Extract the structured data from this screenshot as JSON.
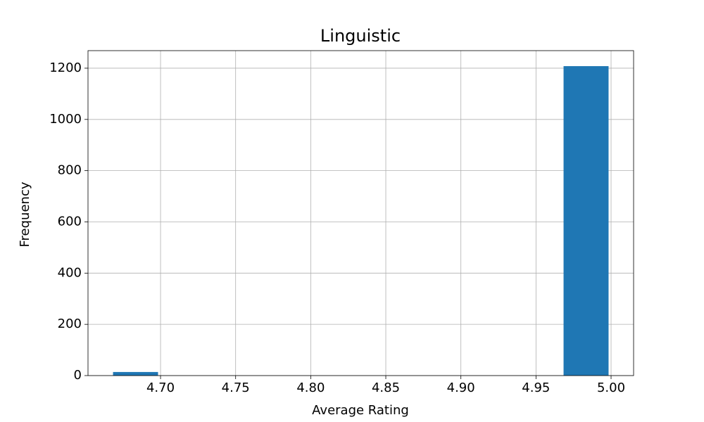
{
  "chart_data": {
    "type": "histogram",
    "title": "Linguistic",
    "x_label": "Average Rating",
    "y_label": "Frequency",
    "bins": [
      4.6667,
      4.7,
      4.7333,
      4.7667,
      4.8,
      4.8333,
      4.8667,
      4.9,
      4.9333,
      4.9667,
      5.0
    ],
    "values": [
      14,
      0,
      0,
      0,
      0,
      0,
      0,
      0,
      0,
      1208
    ],
    "color": "#1f77b4",
    "xlim": [
      4.6517,
      5.015
    ],
    "xticks": [
      {
        "value": 4.7,
        "label": "4.70"
      },
      {
        "value": 4.75,
        "label": "4.75"
      },
      {
        "value": 4.8,
        "label": "4.80"
      },
      {
        "value": 4.85,
        "label": "4.85"
      },
      {
        "value": 4.9,
        "label": "4.90"
      },
      {
        "value": 4.95,
        "label": "4.95"
      },
      {
        "value": 5.0,
        "label": "5.00"
      }
    ],
    "ylim": [
      0,
      1268.5
    ],
    "yticks": [
      0,
      200,
      400,
      600,
      800,
      1000,
      1200
    ],
    "grid": true
  }
}
